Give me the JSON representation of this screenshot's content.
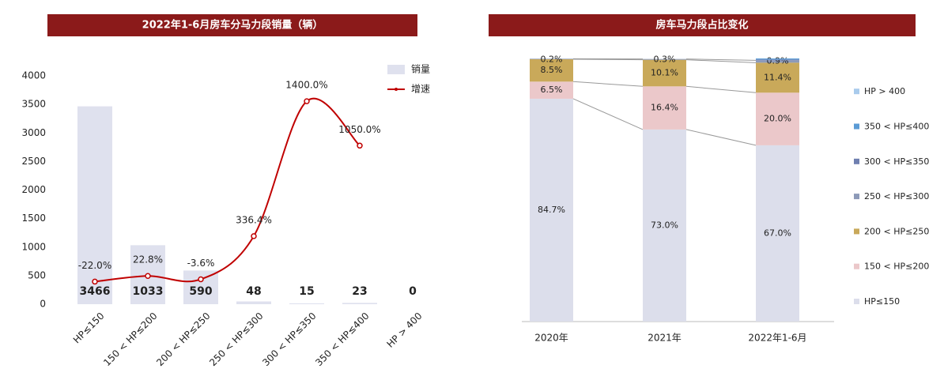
{
  "chart_data": [
    {
      "type": "bar-line",
      "title": "2022年1-6月房车分马力段销量（辆）",
      "categories": [
        "HP≤150",
        "150 < HP≤200",
        "200 < HP≤250",
        "250 < HP≤300",
        "300 < HP≤350",
        "350 < HP≤400",
        "HP > 400"
      ],
      "series": [
        {
          "name": "销量",
          "type": "bar",
          "color": "#dfe1ee",
          "values": [
            3466,
            1033,
            590,
            48,
            15,
            23,
            0
          ]
        },
        {
          "name": "增速",
          "type": "line",
          "axis": "y2",
          "color": "#c00000",
          "values": [
            -22.0,
            22.8,
            -3.6,
            336.4,
            1400.0,
            1050.0,
            null
          ],
          "value_labels": [
            "-22.0%",
            "22.8%",
            "-3.6%",
            "336.4%",
            "1400.0%",
            "1050.0%",
            null
          ]
        }
      ],
      "ylim": [
        0,
        4000
      ],
      "yticks": [
        0,
        500,
        1000,
        1500,
        2000,
        2500,
        3000,
        3500,
        4000
      ],
      "y2lim": [
        -200,
        1600
      ]
    },
    {
      "type": "stacked-bar",
      "title": "房车马力段占比变化",
      "categories": [
        "2020年",
        "2021年",
        "2022年1-6月"
      ],
      "series": [
        {
          "name": "HP≤150",
          "color": "#dcdeeb",
          "values": [
            84.7,
            73.0,
            67.0
          ],
          "value_labels": [
            "84.7%",
            "73.0%",
            "67.0%"
          ]
        },
        {
          "name": "150 < HP≤200",
          "color": "#ebc8ca",
          "values": [
            6.5,
            16.4,
            20.0
          ],
          "value_labels": [
            "6.5%",
            "16.4%",
            "20.0%"
          ]
        },
        {
          "name": "200 < HP≤250",
          "color": "#c9a95a",
          "values": [
            8.5,
            10.1,
            11.4
          ],
          "value_labels": [
            "8.5%",
            "10.1%",
            "11.4%"
          ]
        },
        {
          "name": "250 < HP≤300",
          "color": "#8d9ab8",
          "values": [
            0.2,
            0.3,
            0.9
          ],
          "value_labels": [
            "0.2%",
            "0.3%",
            "0.9%"
          ]
        },
        {
          "name": "300 < HP≤350",
          "color": "#6f7fb0",
          "values": [
            0,
            0,
            0.3
          ]
        },
        {
          "name": "350 < HP≤400",
          "color": "#5b9bd5",
          "values": [
            0,
            0,
            0.4
          ]
        },
        {
          "name": "HP > 400",
          "color": "#a9cbec",
          "values": [
            0,
            0,
            0
          ]
        }
      ],
      "ylim": [
        0,
        100
      ]
    }
  ]
}
